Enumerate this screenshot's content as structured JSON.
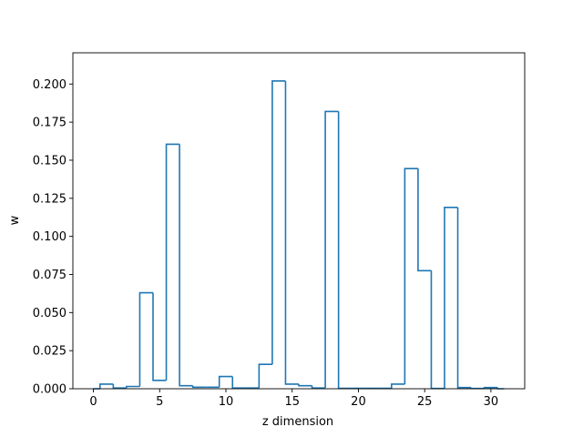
{
  "chart_data": {
    "type": "step",
    "title": "",
    "xlabel": "z dimension",
    "ylabel": "w",
    "xlim": [
      -1.55,
      32.55
    ],
    "ylim": [
      0,
      0.2205
    ],
    "xticks": [
      0,
      5,
      10,
      15,
      20,
      25,
      30
    ],
    "xtick_labels": [
      "0",
      "5",
      "10",
      "15",
      "20",
      "25",
      "30"
    ],
    "yticks": [
      0.0,
      0.025,
      0.05,
      0.075,
      0.1,
      0.125,
      0.15,
      0.175,
      0.2
    ],
    "ytick_labels": [
      "0.000",
      "0.025",
      "0.050",
      "0.075",
      "0.100",
      "0.125",
      "0.150",
      "0.175",
      "0.200"
    ],
    "grid": false,
    "line_color": "#1f77b4",
    "series": [
      {
        "step": "mid",
        "x": [
          0,
          1,
          2,
          3,
          4,
          5,
          6,
          7,
          8,
          9,
          10,
          11,
          12,
          13,
          14,
          15,
          16,
          17,
          18,
          19,
          20,
          21,
          22,
          23,
          24,
          25,
          26,
          27,
          28,
          29,
          30,
          31
        ],
        "values": [
          0.0,
          0.003,
          0.0005,
          0.0015,
          0.063,
          0.0055,
          0.1605,
          0.002,
          0.001,
          0.001,
          0.008,
          0.0005,
          0.0005,
          0.016,
          0.202,
          0.003,
          0.002,
          0.0005,
          0.182,
          0.0003,
          0.0003,
          0.0003,
          0.0003,
          0.003,
          0.1445,
          0.0775,
          0.0002,
          0.119,
          0.0008,
          0.0002,
          0.0008,
          0.0
        ]
      }
    ]
  }
}
